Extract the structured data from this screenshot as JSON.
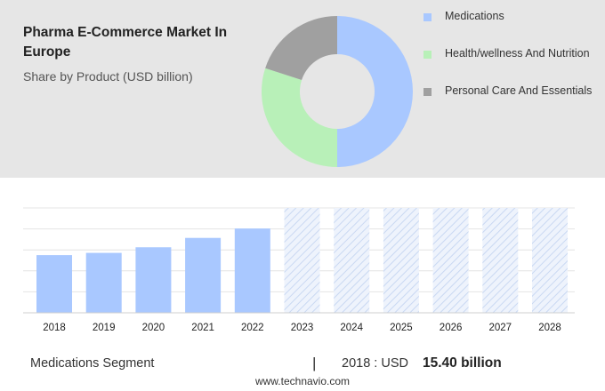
{
  "header": {
    "title": "Pharma E-Commerce Market In Europe",
    "subtitle": "Share by Product (USD billion)"
  },
  "chart_data": [
    {
      "type": "pie",
      "variant": "donut",
      "labels": [
        "Medications",
        "Health/wellness And Nutrition",
        "Personal Care And Essentials"
      ],
      "values": [
        50,
        30,
        20
      ],
      "colors": [
        "#a9c8ff",
        "#b8f0b8",
        "#a0a0a0"
      ],
      "legend_position": "right"
    },
    {
      "type": "bar",
      "categories": [
        "2018",
        "2019",
        "2020",
        "2021",
        "2022",
        "2023",
        "2024",
        "2025",
        "2026",
        "2027",
        "2028"
      ],
      "values": [
        15.4,
        16.0,
        17.5,
        20.0,
        22.5,
        null,
        null,
        null,
        null,
        null,
        null
      ],
      "forecast_categories": [
        "2023",
        "2024",
        "2025",
        "2026",
        "2027",
        "2028"
      ],
      "ylim": [
        0,
        28
      ],
      "grid": true,
      "bar_color": "#a9c8ff",
      "forecast_style": "hatched"
    }
  ],
  "footer": {
    "segment": "Medications Segment",
    "separator": "|",
    "year_label": "2018 : USD",
    "value": "15.40 billion",
    "website": "www.technavio.com"
  }
}
